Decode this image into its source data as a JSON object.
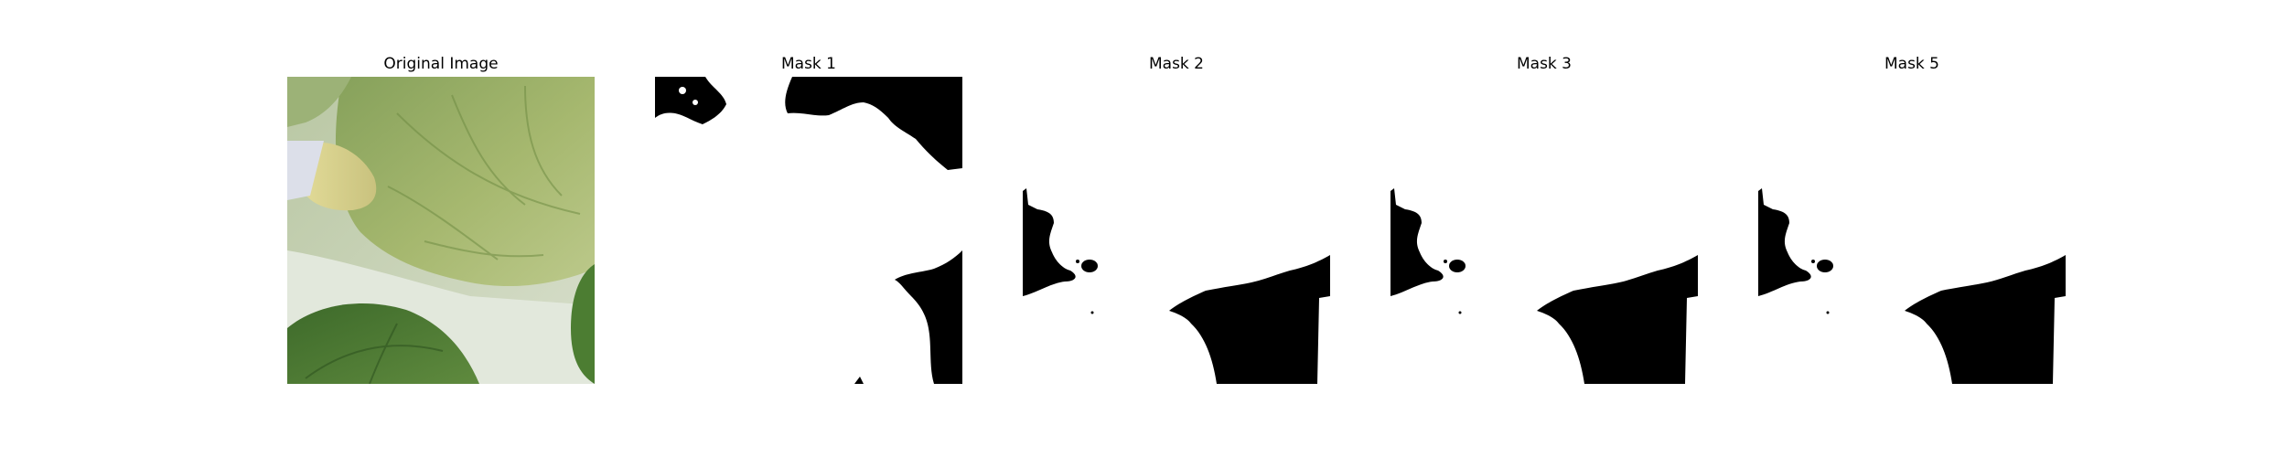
{
  "panels": [
    {
      "title": "Original Image",
      "kind": "photo"
    },
    {
      "title": "Mask 1",
      "kind": "mask"
    },
    {
      "title": "Mask 2",
      "kind": "mask"
    },
    {
      "title": "Mask 3",
      "kind": "mask"
    },
    {
      "title": "Mask 5",
      "kind": "mask"
    }
  ],
  "colors": {
    "background": "#ffffff",
    "mask_fg": "#ffffff",
    "mask_bg": "#000000",
    "leaf_light": "#a9bb72",
    "leaf_dark": "#4f7a33",
    "surface": "#dfe5d9"
  }
}
